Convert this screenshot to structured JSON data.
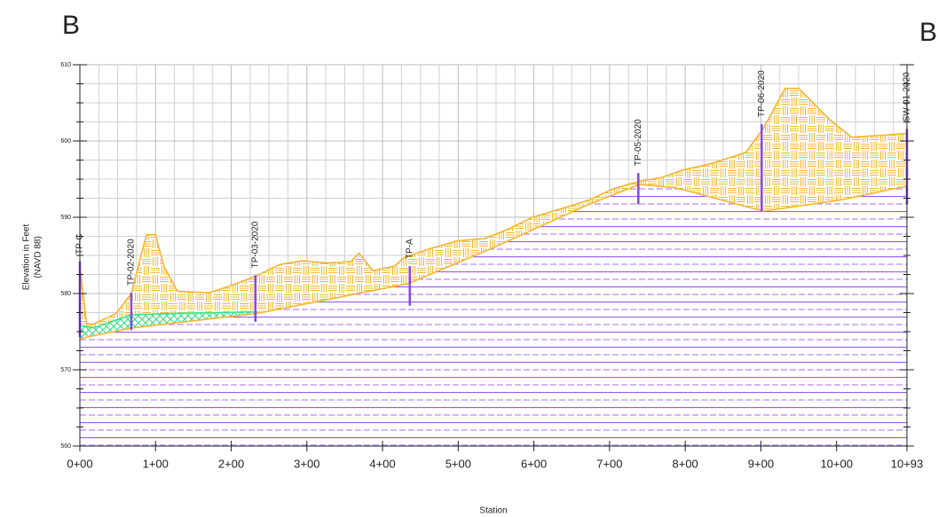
{
  "chart_data": {
    "type": "section",
    "corner_left": "B",
    "corner_right": "B",
    "ylabel": [
      "Elevation in Feet",
      "(NAVD 88)"
    ],
    "xlabel": "Station",
    "xlim": [
      0,
      1093
    ],
    "ylim": [
      560,
      610
    ],
    "xticks": [
      {
        "value": 0,
        "label": "0+00"
      },
      {
        "value": 100,
        "label": "1+00"
      },
      {
        "value": 200,
        "label": "2+00"
      },
      {
        "value": 300,
        "label": "3+00"
      },
      {
        "value": 400,
        "label": "4+00"
      },
      {
        "value": 500,
        "label": "5+00"
      },
      {
        "value": 600,
        "label": "6+00"
      },
      {
        "value": 700,
        "label": "7+00"
      },
      {
        "value": 800,
        "label": "8+00"
      },
      {
        "value": 900,
        "label": "9+00"
      },
      {
        "value": 1000,
        "label": "10+00"
      },
      {
        "value": 1093,
        "label": "10+93"
      }
    ],
    "yticks": [
      560,
      570,
      580,
      590,
      600,
      610
    ],
    "xminor": [
      25,
      50,
      75,
      125,
      150,
      175,
      225,
      250,
      275,
      325,
      350,
      375,
      425,
      450,
      475,
      525,
      550,
      575,
      625,
      650,
      675,
      725,
      750,
      775,
      825,
      850,
      875,
      925,
      950,
      975,
      1025,
      1050,
      1075
    ],
    "yminor": [
      562.5,
      565,
      567.5,
      572.5,
      575,
      577.5,
      582.5,
      585,
      587.5,
      592.5,
      595,
      597.5,
      602.5,
      605,
      607.5
    ],
    "grid": true,
    "series": [
      {
        "color": "#f2b632",
        "hatch": "basket",
        "x": [
          0,
          9,
          18,
          47,
          68,
          88,
          100,
          111,
          129,
          170,
          199,
          235,
          264,
          293,
          328,
          358,
          369,
          387,
          416,
          428,
          463,
          498,
          534,
          563,
          598,
          639,
          674,
          704,
          739,
          768,
          797,
          833,
          880,
          903,
          932,
          950,
          991,
          1020,
          1067,
          1093
        ],
        "values": [
          583.6,
          576,
          576,
          577.3,
          580,
          587.7,
          587.7,
          583.6,
          580.3,
          580.1,
          581,
          582.4,
          583.8,
          584.3,
          584,
          584.2,
          585.3,
          583,
          583.6,
          584.7,
          585.9,
          586.9,
          587.2,
          588.3,
          590,
          591.2,
          592.3,
          593.7,
          594.7,
          595.2,
          596.2,
          597,
          598.5,
          601.6,
          606.9,
          606.9,
          602.8,
          600.5,
          600.8,
          601
        ]
      },
      {
        "color": "#3ee08a",
        "hatch": "cross",
        "x": [
          0,
          18,
          68,
          129,
          235
        ],
        "values": [
          575.8,
          575.5,
          577.2,
          577.4,
          577.6
        ]
      },
      {
        "color": "#9a5cf0",
        "hatch": "lines",
        "x": [
          0,
          70,
          235,
          434,
          551,
          668,
          739,
          786,
          903,
          1008,
          1093
        ],
        "values": [
          574.1,
          575.5,
          577.4,
          581.3,
          586.2,
          591.5,
          594.3,
          593.9,
          590.8,
          592.3,
          594.1
        ]
      }
    ],
    "boreholes": [
      {
        "label": "TP-C",
        "station": 0,
        "top": 584.2,
        "bottom": 574.3
      },
      {
        "label": "TP-02-2020",
        "station": 68,
        "top": 580.1,
        "bottom": 575.2
      },
      {
        "label": "TP-03-2020",
        "station": 232,
        "top": 582.4,
        "bottom": 576.3
      },
      {
        "label": "TP-A",
        "station": 436,
        "top": 583.6,
        "bottom": 578.4
      },
      {
        "label": "TP-05-2020",
        "station": 738,
        "top": 595.8,
        "bottom": 591.7
      },
      {
        "label": "TP-06-2020",
        "station": 901,
        "top": 602.2,
        "bottom": 590.8
      },
      {
        "label": "SW-01-2020",
        "station": 1093,
        "top": 601.6,
        "bottom": 591.7
      }
    ]
  }
}
